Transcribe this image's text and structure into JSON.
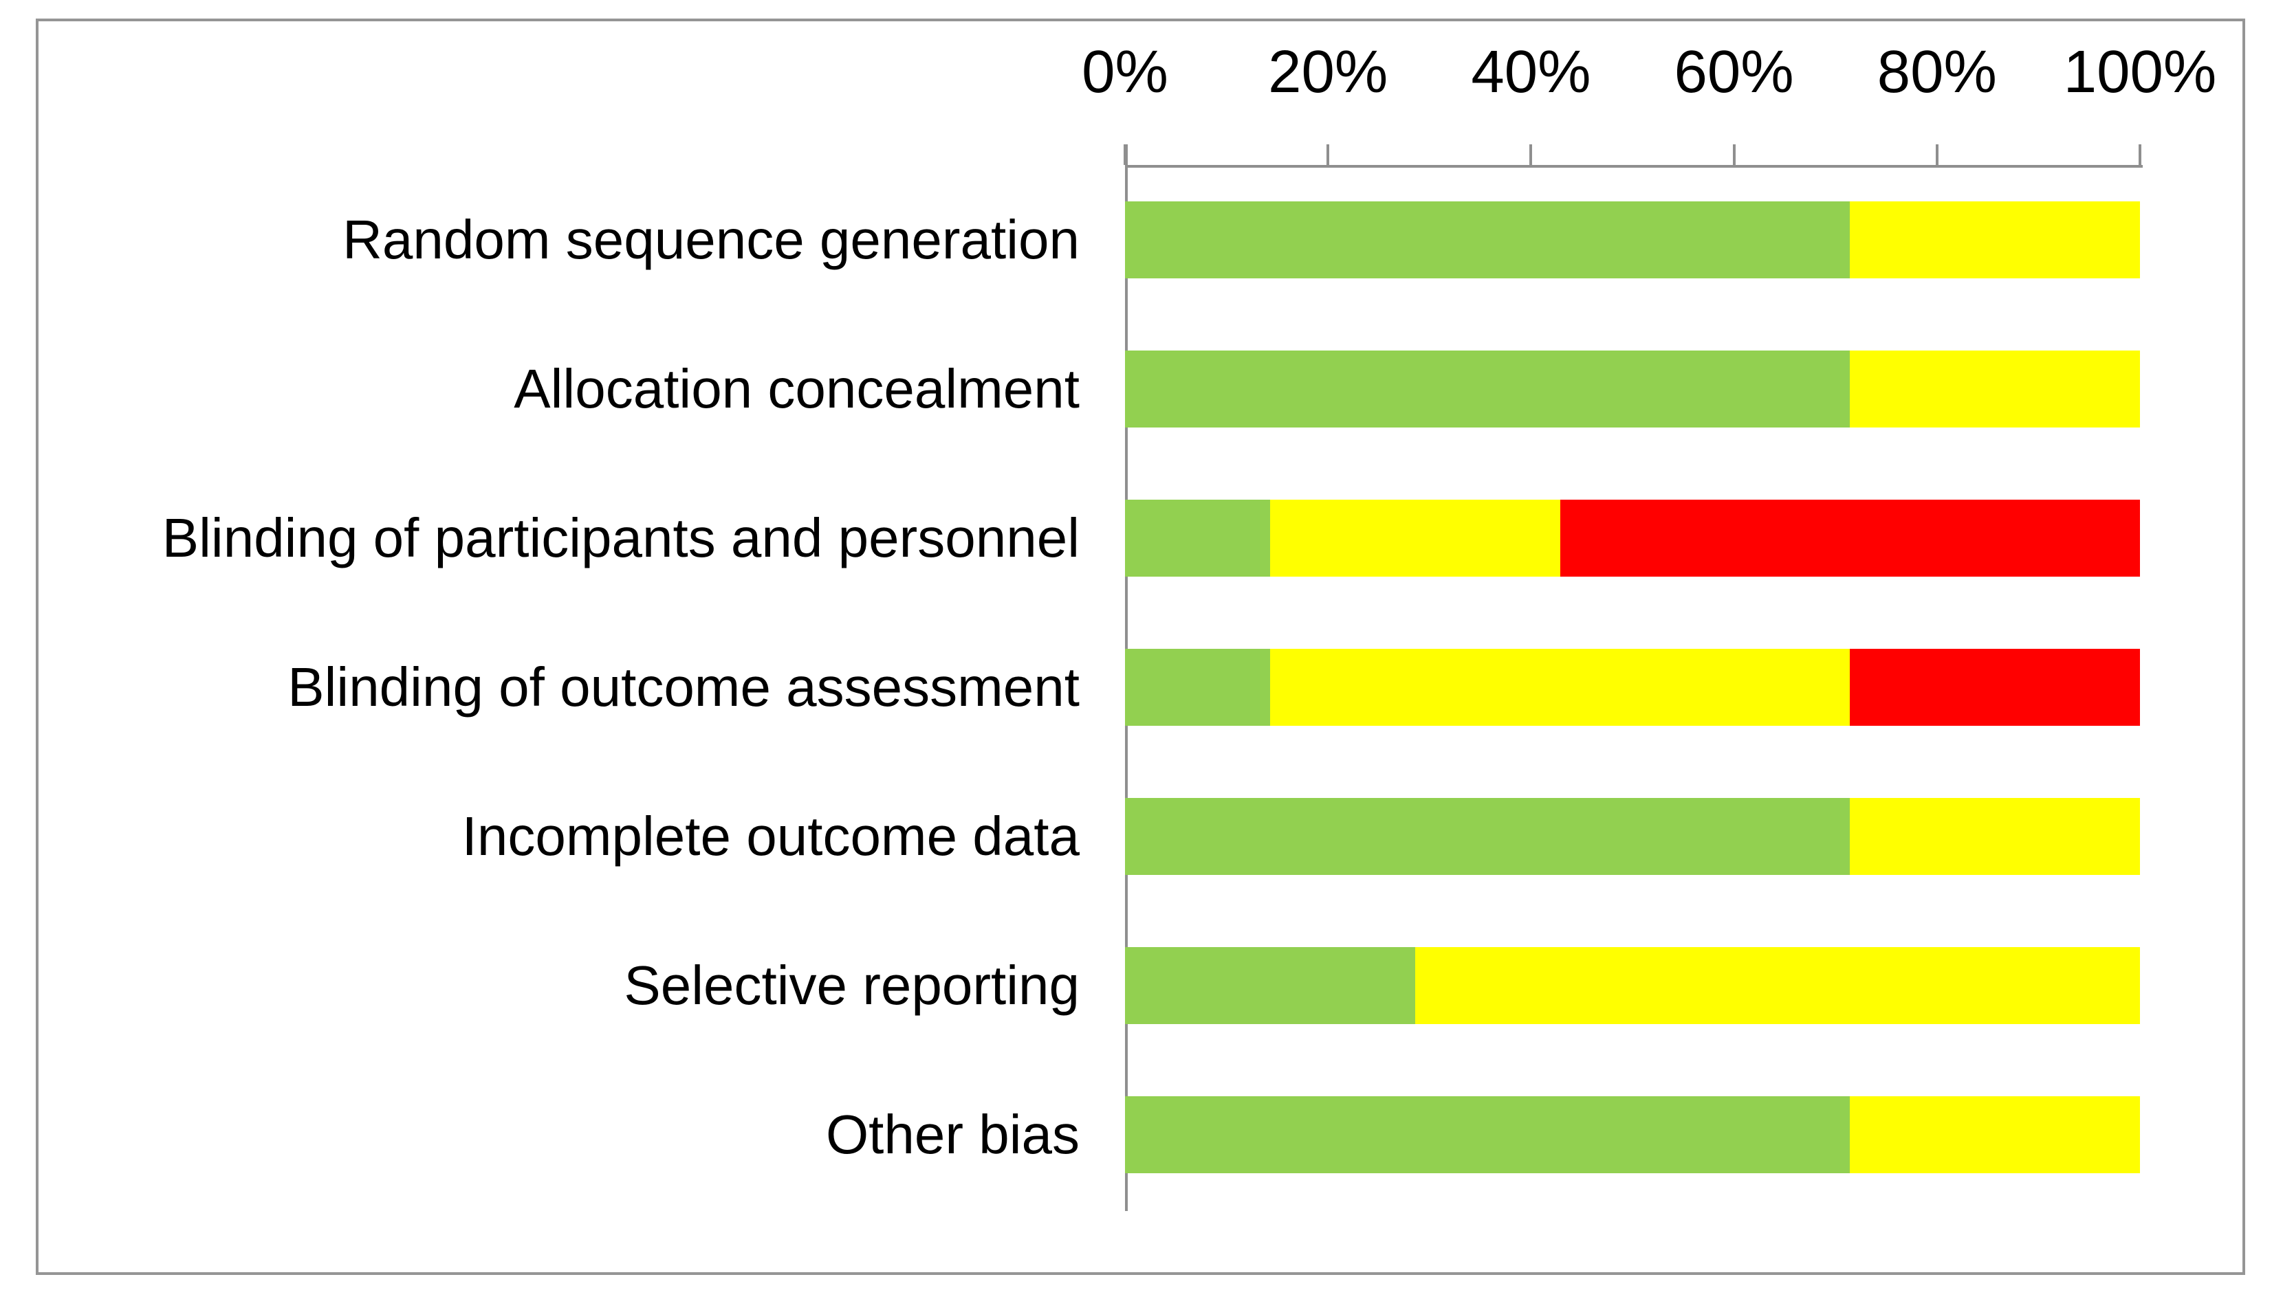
{
  "chart_data": {
    "type": "bar",
    "orientation": "horizontal-stacked",
    "title": "",
    "categories": [
      "Random sequence generation",
      "Allocation concealment",
      "Blinding of participants and personnel",
      "Blinding of outcome assessment",
      "Incomplete outcome data",
      "Selective reporting",
      "Other bias"
    ],
    "series": [
      {
        "name": "green-segment",
        "color": "#92D050",
        "values": [
          71.4,
          71.4,
          14.3,
          14.3,
          71.4,
          28.6,
          71.4
        ]
      },
      {
        "name": "yellow-segment",
        "color": "#FFFF00",
        "values": [
          28.6,
          28.6,
          28.6,
          57.1,
          28.6,
          71.4,
          28.6
        ]
      },
      {
        "name": "red-segment",
        "color": "#FF0000",
        "values": [
          0,
          0,
          57.1,
          28.6,
          0,
          0,
          0
        ]
      }
    ],
    "x_axis": {
      "position": "top",
      "range": [
        0,
        100
      ],
      "tick_labels": [
        "0%",
        "20%",
        "40%",
        "60%",
        "80%",
        "100%"
      ]
    },
    "legend": "none",
    "grid": "off"
  },
  "colors": {
    "frame_border": "#959595",
    "axis": "#8f8f8f",
    "text": "#000000",
    "background": "#ffffff"
  }
}
